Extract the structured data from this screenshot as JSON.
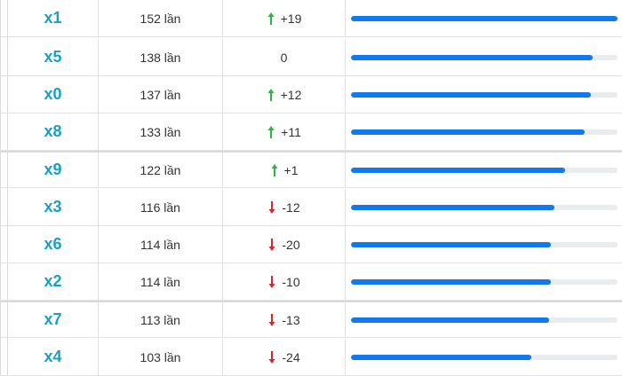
{
  "rows": [
    {
      "number": "x1",
      "count": "152 lần",
      "delta": "+19",
      "trend": "up",
      "fraction": 1.0
    },
    {
      "number": "x5",
      "count": "138 lần",
      "delta": "0",
      "trend": "none",
      "fraction": 0.908
    },
    {
      "number": "x0",
      "count": "137 lần",
      "delta": "+12",
      "trend": "up",
      "fraction": 0.901
    },
    {
      "number": "x8",
      "count": "133 lần",
      "delta": "+11",
      "trend": "up",
      "fraction": 0.875
    },
    {
      "number": "x9",
      "count": "122 lần",
      "delta": "+1",
      "trend": "up",
      "fraction": 0.803
    },
    {
      "number": "x3",
      "count": "116 lần",
      "delta": "-12",
      "trend": "down",
      "fraction": 0.763
    },
    {
      "number": "x6",
      "count": "114 lần",
      "delta": "-20",
      "trend": "down",
      "fraction": 0.75
    },
    {
      "number": "x2",
      "count": "114 lần",
      "delta": "-10",
      "trend": "down",
      "fraction": 0.75
    },
    {
      "number": "x7",
      "count": "113 lần",
      "delta": "-13",
      "trend": "down",
      "fraction": 0.743
    },
    {
      "number": "x4",
      "count": "103 lần",
      "delta": "-24",
      "trend": "down",
      "fraction": 0.678
    }
  ],
  "icons": {
    "up": "arrow-up-icon",
    "down": "arrow-down-icon"
  },
  "colors": {
    "up": "#2fb344",
    "down": "#d9262b",
    "number": "#1a9fc4",
    "bar": "#1279ec",
    "track": "#e9ecef"
  }
}
